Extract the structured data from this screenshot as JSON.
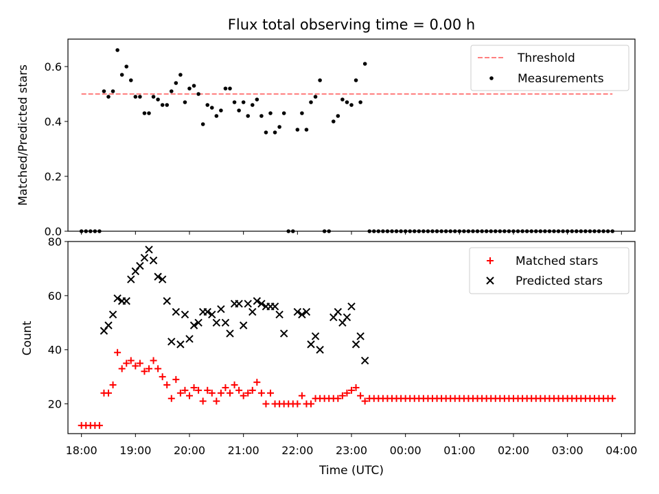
{
  "chart_data": [
    {
      "type": "scatter",
      "title": "Flux total observing time = 0.00 h",
      "ylabel": "Matched/Predicted stars",
      "xlabel": "",
      "xlim": [
        "17:45",
        "04:15"
      ],
      "ylim": [
        0,
        0.7
      ],
      "yticks": [
        0.0,
        0.2,
        0.4,
        0.6
      ],
      "ytick_labels": [
        "0.0",
        "0.2",
        "0.4",
        "0.6"
      ],
      "legend_position": "top-right",
      "grid": false,
      "series": [
        {
          "name": "Threshold",
          "kind": "line",
          "style": "dashed",
          "color": "#ff7f7f",
          "x": [
            "18:00",
            "03:50"
          ],
          "y": [
            0.5,
            0.5
          ]
        },
        {
          "name": "Measurements",
          "kind": "scatter",
          "marker": "dot",
          "color": "#000000",
          "x": [
            "18:00",
            "18:05",
            "18:10",
            "18:15",
            "18:20",
            "18:25",
            "18:30",
            "18:35",
            "18:40",
            "18:45",
            "18:50",
            "18:55",
            "19:00",
            "19:05",
            "19:10",
            "19:15",
            "19:20",
            "19:25",
            "19:30",
            "19:35",
            "19:40",
            "19:45",
            "19:50",
            "19:55",
            "20:00",
            "20:05",
            "20:10",
            "20:15",
            "20:20",
            "20:25",
            "20:30",
            "20:35",
            "20:40",
            "20:45",
            "20:50",
            "20:55",
            "21:00",
            "21:05",
            "21:10",
            "21:15",
            "21:20",
            "21:25",
            "21:30",
            "21:35",
            "21:40",
            "21:45",
            "21:50",
            "21:55",
            "22:00",
            "22:05",
            "22:10",
            "22:15",
            "22:20",
            "22:25",
            "22:30",
            "22:35",
            "22:40",
            "22:45",
            "22:50",
            "22:55",
            "23:00",
            "23:05",
            "23:10",
            "23:15",
            "23:20",
            "23:25",
            "23:30",
            "23:35",
            "23:40",
            "23:45",
            "23:50",
            "23:55",
            "00:00",
            "00:05",
            "00:10",
            "00:15",
            "00:20",
            "00:25",
            "00:30",
            "00:35",
            "00:40",
            "00:45",
            "00:50",
            "00:55",
            "01:00",
            "01:05",
            "01:10",
            "01:15",
            "01:20",
            "01:25",
            "01:30",
            "01:35",
            "01:40",
            "01:45",
            "01:50",
            "01:55",
            "02:00",
            "02:05",
            "02:10",
            "02:15",
            "02:20",
            "02:25",
            "02:30",
            "02:35",
            "02:40",
            "02:45",
            "02:50",
            "02:55",
            "03:00",
            "03:05",
            "03:10",
            "03:15",
            "03:20",
            "03:25",
            "03:30",
            "03:35",
            "03:40",
            "03:45",
            "03:50"
          ],
          "y": [
            0,
            0,
            0,
            0,
            0,
            0.51,
            0.49,
            0.51,
            0.66,
            0.57,
            0.6,
            0.55,
            0.49,
            0.49,
            0.43,
            0.43,
            0.49,
            0.48,
            0.46,
            0.46,
            0.51,
            0.54,
            0.57,
            0.47,
            0.52,
            0.53,
            0.5,
            0.39,
            0.46,
            0.45,
            0.42,
            0.44,
            0.52,
            0.52,
            0.47,
            0.44,
            0.47,
            0.42,
            0.46,
            0.48,
            0.42,
            0.36,
            0.43,
            0.36,
            0.38,
            0.43,
            0,
            0,
            0.37,
            0.43,
            0.37,
            0.47,
            0.49,
            0.55,
            0,
            0,
            0.4,
            0.42,
            0.48,
            0.47,
            0.46,
            0.55,
            0.47,
            0.61,
            0,
            0,
            0,
            0,
            0,
            0,
            0,
            0,
            0,
            0,
            0,
            0,
            0,
            0,
            0,
            0,
            0,
            0,
            0,
            0,
            0,
            0,
            0,
            0,
            0,
            0,
            0,
            0,
            0,
            0,
            0,
            0,
            0,
            0,
            0,
            0,
            0,
            0,
            0,
            0,
            0,
            0,
            0,
            0,
            0,
            0,
            0,
            0,
            0,
            0,
            0,
            0,
            0,
            0,
            0
          ]
        }
      ]
    },
    {
      "type": "scatter",
      "title": "",
      "ylabel": "Count",
      "xlabel": "Time (UTC)",
      "xlim": [
        "17:45",
        "04:15"
      ],
      "ylim": [
        9,
        80
      ],
      "yticks": [
        20,
        40,
        60,
        80
      ],
      "ytick_labels": [
        "20",
        "40",
        "60",
        "80"
      ],
      "xticks": [
        "18:00",
        "19:00",
        "20:00",
        "21:00",
        "22:00",
        "23:00",
        "00:00",
        "01:00",
        "02:00",
        "03:00",
        "04:00"
      ],
      "legend_position": "top-right",
      "grid": false,
      "series": [
        {
          "name": "Matched stars",
          "kind": "scatter",
          "marker": "plus",
          "color": "#ff0000",
          "x": [
            "18:00",
            "18:05",
            "18:10",
            "18:15",
            "18:20",
            "18:25",
            "18:30",
            "18:35",
            "18:40",
            "18:45",
            "18:50",
            "18:55",
            "19:00",
            "19:05",
            "19:10",
            "19:15",
            "19:20",
            "19:25",
            "19:30",
            "19:35",
            "19:40",
            "19:45",
            "19:50",
            "19:55",
            "20:00",
            "20:05",
            "20:10",
            "20:15",
            "20:20",
            "20:25",
            "20:30",
            "20:35",
            "20:40",
            "20:45",
            "20:50",
            "20:55",
            "21:00",
            "21:05",
            "21:10",
            "21:15",
            "21:20",
            "21:25",
            "21:30",
            "21:35",
            "21:40",
            "21:45",
            "21:50",
            "21:55",
            "22:00",
            "22:05",
            "22:10",
            "22:15",
            "22:20",
            "22:25",
            "22:30",
            "22:35",
            "22:40",
            "22:45",
            "22:50",
            "22:55",
            "23:00",
            "23:05",
            "23:10",
            "23:15",
            "23:20",
            "23:25",
            "23:30",
            "23:35",
            "23:40",
            "23:45",
            "23:50",
            "23:55",
            "00:00",
            "00:05",
            "00:10",
            "00:15",
            "00:20",
            "00:25",
            "00:30",
            "00:35",
            "00:40",
            "00:45",
            "00:50",
            "00:55",
            "01:00",
            "01:05",
            "01:10",
            "01:15",
            "01:20",
            "01:25",
            "01:30",
            "01:35",
            "01:40",
            "01:45",
            "01:50",
            "01:55",
            "02:00",
            "02:05",
            "02:10",
            "02:15",
            "02:20",
            "02:25",
            "02:30",
            "02:35",
            "02:40",
            "02:45",
            "02:50",
            "02:55",
            "03:00",
            "03:05",
            "03:10",
            "03:15",
            "03:20",
            "03:25",
            "03:30",
            "03:35",
            "03:40",
            "03:45",
            "03:50"
          ],
          "y": [
            12,
            12,
            12,
            12,
            12,
            24,
            24,
            27,
            39,
            33,
            35,
            36,
            34,
            35,
            32,
            33,
            36,
            33,
            30,
            27,
            22,
            29,
            24,
            25,
            23,
            26,
            25,
            21,
            25,
            24,
            21,
            24,
            26,
            24,
            27,
            25,
            23,
            24,
            25,
            28,
            24,
            20,
            24,
            20,
            20,
            20,
            20,
            20,
            20,
            23,
            20,
            20,
            22,
            22,
            22,
            22,
            22,
            22,
            23,
            24,
            25,
            26,
            23,
            21,
            22,
            22,
            22,
            22,
            22,
            22,
            22,
            22,
            22,
            22,
            22,
            22,
            22,
            22,
            22,
            22,
            22,
            22,
            22,
            22,
            22,
            22,
            22,
            22,
            22,
            22,
            22,
            22,
            22,
            22,
            22,
            22,
            22,
            22,
            22,
            22,
            22,
            22,
            22,
            22,
            22,
            22,
            22,
            22,
            22,
            22,
            22,
            22,
            22,
            22,
            22,
            22,
            22,
            22,
            22
          ]
        },
        {
          "name": "Predicted stars",
          "kind": "scatter",
          "marker": "x",
          "color": "#000000",
          "x": [
            "18:25",
            "18:30",
            "18:35",
            "18:40",
            "18:45",
            "18:50",
            "18:55",
            "19:00",
            "19:05",
            "19:10",
            "19:15",
            "19:20",
            "19:25",
            "19:30",
            "19:35",
            "19:40",
            "19:45",
            "19:50",
            "19:55",
            "20:00",
            "20:05",
            "20:10",
            "20:15",
            "20:20",
            "20:25",
            "20:30",
            "20:35",
            "20:40",
            "20:45",
            "20:50",
            "20:55",
            "21:00",
            "21:05",
            "21:10",
            "21:15",
            "21:20",
            "21:25",
            "21:30",
            "21:35",
            "21:40",
            "21:45",
            "22:00",
            "22:05",
            "22:10",
            "22:15",
            "22:20",
            "22:25",
            "22:40",
            "22:45",
            "22:50",
            "22:55",
            "23:00",
            "23:05",
            "23:10",
            "23:15"
          ],
          "y": [
            47,
            49,
            53,
            59,
            58,
            58,
            66,
            69,
            71,
            74,
            77,
            73,
            67,
            66,
            58,
            43,
            54,
            42,
            53,
            44,
            49,
            50,
            54,
            54,
            53,
            50,
            55,
            50,
            46,
            57,
            57,
            49,
            57,
            54,
            58,
            57,
            56,
            56,
            56,
            53,
            46,
            54,
            53,
            54,
            42,
            45,
            40,
            52,
            54,
            50,
            52,
            56,
            42,
            45,
            36
          ]
        }
      ]
    }
  ]
}
